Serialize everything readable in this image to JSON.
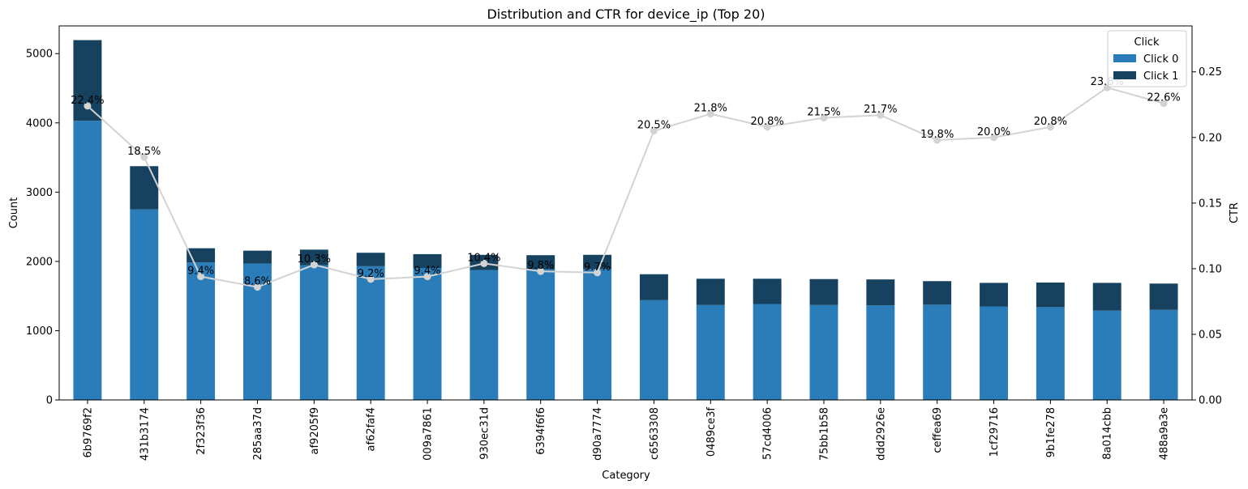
{
  "chart_data": {
    "type": "bar",
    "stacked": true,
    "title": "Distribution and CTR for device_ip (Top 20)",
    "xlabel": "Category",
    "ylabel": "Count",
    "y2label": "CTR",
    "ylim": [
      0,
      5400
    ],
    "y2lim": [
      0,
      0.285
    ],
    "yticks": [
      0,
      1000,
      2000,
      3000,
      4000,
      5000
    ],
    "y2ticks": [
      "0.00",
      "0.05",
      "0.10",
      "0.15",
      "0.20",
      "0.25"
    ],
    "legend": {
      "title": "Click",
      "position": "top-right"
    },
    "categories": [
      "6b9769f2",
      "431b3174",
      "2f323f36",
      "285aa37d",
      "af9205f9",
      "af62faf4",
      "009a7861",
      "930ec31d",
      "6394f6f6",
      "d90a7774",
      "c6563308",
      "0489ce3f",
      "57cd4006",
      "75bb1b58",
      "ddd2926e",
      "ceffea69",
      "1cf29716",
      "9b1fe278",
      "8a014cbb",
      "488a9a3e"
    ],
    "series": [
      {
        "name": "Click 0",
        "color": "#2a7db8",
        "values": [
          4030,
          2750,
          1985,
          1970,
          1945,
          1930,
          1905,
          1875,
          1885,
          1890,
          1440,
          1370,
          1385,
          1370,
          1365,
          1375,
          1350,
          1340,
          1290,
          1300
        ]
      },
      {
        "name": "Click 1",
        "color": "#164260",
        "values": [
          1165,
          625,
          205,
          185,
          225,
          195,
          200,
          220,
          205,
          205,
          375,
          380,
          365,
          375,
          375,
          340,
          340,
          355,
          400,
          380
        ]
      }
    ],
    "ctr": {
      "color": "#d3d3d3",
      "values": [
        0.224,
        0.185,
        0.094,
        0.086,
        0.103,
        0.092,
        0.094,
        0.104,
        0.098,
        0.097,
        0.205,
        0.218,
        0.208,
        0.215,
        0.217,
        0.198,
        0.2,
        0.208,
        0.238,
        0.226
      ],
      "labels": [
        "22.4%",
        "18.5%",
        "9.4%",
        "8.6%",
        "10.3%",
        "9.2%",
        "9.4%",
        "10.4%",
        "9.8%",
        "9.7%",
        "20.5%",
        "21.8%",
        "20.8%",
        "21.5%",
        "21.7%",
        "19.8%",
        "20.0%",
        "20.8%",
        "23.8%",
        "22.6%"
      ]
    }
  }
}
